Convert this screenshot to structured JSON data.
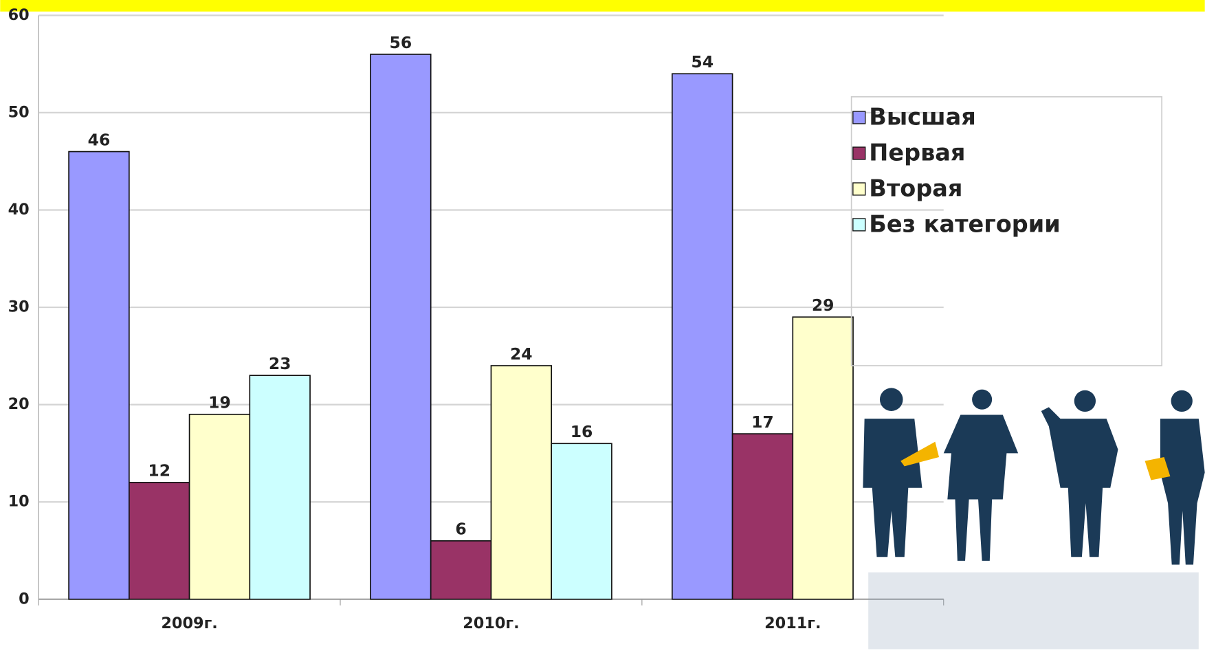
{
  "chart_data": {
    "type": "bar",
    "categories": [
      "2009г.",
      "2010г.",
      "2011г."
    ],
    "series": [
      {
        "name": "Высшая",
        "color": "#9999ff",
        "values": [
          46,
          56,
          54
        ]
      },
      {
        "name": "Первая",
        "color": "#993366",
        "values": [
          12,
          6,
          17
        ]
      },
      {
        "name": "Вторая",
        "color": "#ffffcc",
        "values": [
          19,
          24,
          29
        ]
      },
      {
        "name": "Без категории",
        "color": "#ccffff",
        "values": [
          23,
          16,
          null
        ]
      }
    ],
    "ylim": [
      0,
      60
    ],
    "yticks": [
      0,
      10,
      20,
      30,
      40,
      50,
      60
    ],
    "grid": true,
    "legend": "right"
  }
}
